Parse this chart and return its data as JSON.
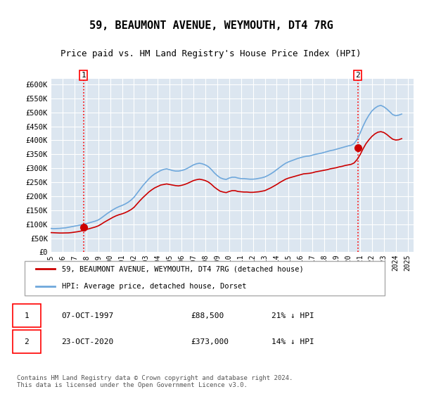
{
  "title": "59, BEAUMONT AVENUE, WEYMOUTH, DT4 7RG",
  "subtitle": "Price paid vs. HM Land Registry's House Price Index (HPI)",
  "plot_bg_color": "#dce6f0",
  "ylim": [
    0,
    620000
  ],
  "yticks": [
    0,
    50000,
    100000,
    150000,
    200000,
    250000,
    300000,
    350000,
    400000,
    450000,
    500000,
    550000,
    600000
  ],
  "ytick_labels": [
    "£0",
    "£50K",
    "£100K",
    "£150K",
    "£200K",
    "£250K",
    "£300K",
    "£350K",
    "£400K",
    "£450K",
    "£500K",
    "£550K",
    "£600K"
  ],
  "xlim_start": 1995.0,
  "xlim_end": 2025.5,
  "sale1_x": 1997.77,
  "sale1_y": 88500,
  "sale1_label": "1",
  "sale1_date": "07-OCT-1997",
  "sale1_price": "£88,500",
  "sale1_hpi": "21% ↓ HPI",
  "sale2_x": 2020.81,
  "sale2_y": 373000,
  "sale2_label": "2",
  "sale2_date": "23-OCT-2020",
  "sale2_price": "£373,000",
  "sale2_hpi": "14% ↓ HPI",
  "hpi_line_color": "#6fa8dc",
  "price_line_color": "#cc0000",
  "marker_color": "#cc0000",
  "legend_label_price": "59, BEAUMONT AVENUE, WEYMOUTH, DT4 7RG (detached house)",
  "legend_label_hpi": "HPI: Average price, detached house, Dorset",
  "footer": "Contains HM Land Registry data © Crown copyright and database right 2024.\nThis data is licensed under the Open Government Licence v3.0.",
  "hpi_data_x": [
    1995.0,
    1995.25,
    1995.5,
    1995.75,
    1996.0,
    1996.25,
    1996.5,
    1996.75,
    1997.0,
    1997.25,
    1997.5,
    1997.75,
    1998.0,
    1998.25,
    1998.5,
    1998.75,
    1999.0,
    1999.25,
    1999.5,
    1999.75,
    2000.0,
    2000.25,
    2000.5,
    2000.75,
    2001.0,
    2001.25,
    2001.5,
    2001.75,
    2002.0,
    2002.25,
    2002.5,
    2002.75,
    2003.0,
    2003.25,
    2003.5,
    2003.75,
    2004.0,
    2004.25,
    2004.5,
    2004.75,
    2005.0,
    2005.25,
    2005.5,
    2005.75,
    2006.0,
    2006.25,
    2006.5,
    2006.75,
    2007.0,
    2007.25,
    2007.5,
    2007.75,
    2008.0,
    2008.25,
    2008.5,
    2008.75,
    2009.0,
    2009.25,
    2009.5,
    2009.75,
    2010.0,
    2010.25,
    2010.5,
    2010.75,
    2011.0,
    2011.25,
    2011.5,
    2011.75,
    2012.0,
    2012.25,
    2012.5,
    2012.75,
    2013.0,
    2013.25,
    2013.5,
    2013.75,
    2014.0,
    2014.25,
    2014.5,
    2014.75,
    2015.0,
    2015.25,
    2015.5,
    2015.75,
    2016.0,
    2016.25,
    2016.5,
    2016.75,
    2017.0,
    2017.25,
    2017.5,
    2017.75,
    2018.0,
    2018.25,
    2018.5,
    2018.75,
    2019.0,
    2019.25,
    2019.5,
    2019.75,
    2020.0,
    2020.25,
    2020.5,
    2020.75,
    2021.0,
    2021.25,
    2021.5,
    2021.75,
    2022.0,
    2022.25,
    2022.5,
    2022.75,
    2023.0,
    2023.25,
    2023.5,
    2023.75,
    2024.0,
    2024.25,
    2024.5
  ],
  "hpi_data_y": [
    85000,
    84000,
    84500,
    85000,
    86000,
    87000,
    89000,
    91000,
    93000,
    95000,
    97000,
    99000,
    102000,
    105000,
    108000,
    111000,
    115000,
    122000,
    130000,
    138000,
    145000,
    152000,
    158000,
    163000,
    167000,
    172000,
    178000,
    186000,
    196000,
    210000,
    224000,
    238000,
    250000,
    262000,
    272000,
    280000,
    286000,
    292000,
    296000,
    298000,
    295000,
    292000,
    290000,
    290000,
    292000,
    295000,
    300000,
    306000,
    312000,
    316000,
    318000,
    316000,
    312000,
    306000,
    296000,
    284000,
    274000,
    266000,
    262000,
    260000,
    265000,
    268000,
    268000,
    265000,
    263000,
    263000,
    262000,
    261000,
    261000,
    262000,
    264000,
    266000,
    269000,
    274000,
    280000,
    287000,
    295000,
    303000,
    311000,
    318000,
    323000,
    327000,
    331000,
    335000,
    338000,
    341000,
    343000,
    344000,
    347000,
    350000,
    352000,
    354000,
    357000,
    360000,
    363000,
    365000,
    368000,
    371000,
    374000,
    377000,
    380000,
    382000,
    388000,
    403000,
    425000,
    450000,
    472000,
    490000,
    505000,
    515000,
    522000,
    525000,
    520000,
    512000,
    502000,
    492000,
    488000,
    490000,
    494000
  ],
  "price_data_x": [
    1995.0,
    1995.25,
    1995.5,
    1995.75,
    1996.0,
    1996.25,
    1996.5,
    1996.75,
    1997.0,
    1997.25,
    1997.5,
    1997.75,
    1998.0,
    1998.25,
    1998.5,
    1998.75,
    1999.0,
    1999.25,
    1999.5,
    1999.75,
    2000.0,
    2000.25,
    2000.5,
    2000.75,
    2001.0,
    2001.25,
    2001.5,
    2001.75,
    2002.0,
    2002.25,
    2002.5,
    2002.75,
    2003.0,
    2003.25,
    2003.5,
    2003.75,
    2004.0,
    2004.25,
    2004.5,
    2004.75,
    2005.0,
    2005.25,
    2005.5,
    2005.75,
    2006.0,
    2006.25,
    2006.5,
    2006.75,
    2007.0,
    2007.25,
    2007.5,
    2007.75,
    2008.0,
    2008.25,
    2008.5,
    2008.75,
    2009.0,
    2009.25,
    2009.5,
    2009.75,
    2010.0,
    2010.25,
    2010.5,
    2010.75,
    2011.0,
    2011.25,
    2011.5,
    2011.75,
    2012.0,
    2012.25,
    2012.5,
    2012.75,
    2013.0,
    2013.25,
    2013.5,
    2013.75,
    2014.0,
    2014.25,
    2014.5,
    2014.75,
    2015.0,
    2015.25,
    2015.5,
    2015.75,
    2016.0,
    2016.25,
    2016.5,
    2016.75,
    2017.0,
    2017.25,
    2017.5,
    2017.75,
    2018.0,
    2018.25,
    2018.5,
    2018.75,
    2019.0,
    2019.25,
    2019.5,
    2019.75,
    2020.0,
    2020.25,
    2020.5,
    2020.75,
    2021.0,
    2021.25,
    2021.5,
    2021.75,
    2022.0,
    2022.25,
    2022.5,
    2022.75,
    2023.0,
    2023.25,
    2023.5,
    2023.75,
    2024.0,
    2024.25,
    2024.5
  ],
  "price_data_y": [
    70000,
    69500,
    69000,
    68500,
    68500,
    68800,
    69000,
    70000,
    71500,
    73000,
    75000,
    78000,
    81000,
    84000,
    87000,
    90000,
    94000,
    100000,
    107000,
    113000,
    119000,
    125000,
    130000,
    134000,
    137000,
    141000,
    146000,
    152000,
    160000,
    172000,
    184000,
    195000,
    205000,
    215000,
    223000,
    230000,
    235000,
    240000,
    242000,
    244000,
    242000,
    240000,
    238000,
    237000,
    239000,
    242000,
    246000,
    251000,
    256000,
    259000,
    261000,
    259000,
    256000,
    251000,
    243000,
    233000,
    225000,
    218000,
    215000,
    213000,
    217000,
    220000,
    220000,
    217000,
    216000,
    215000,
    215000,
    214000,
    214000,
    215000,
    216000,
    218000,
    220000,
    225000,
    230000,
    236000,
    242000,
    249000,
    255000,
    261000,
    265000,
    268000,
    271000,
    274000,
    277000,
    280000,
    281000,
    282000,
    284000,
    287000,
    289000,
    291000,
    293000,
    295000,
    298000,
    300000,
    302000,
    305000,
    307000,
    310000,
    312000,
    314000,
    319000,
    331000,
    348000,
    369000,
    388000,
    402000,
    414000,
    423000,
    429000,
    431000,
    428000,
    421000,
    412000,
    404000,
    401000,
    402000,
    406000
  ]
}
